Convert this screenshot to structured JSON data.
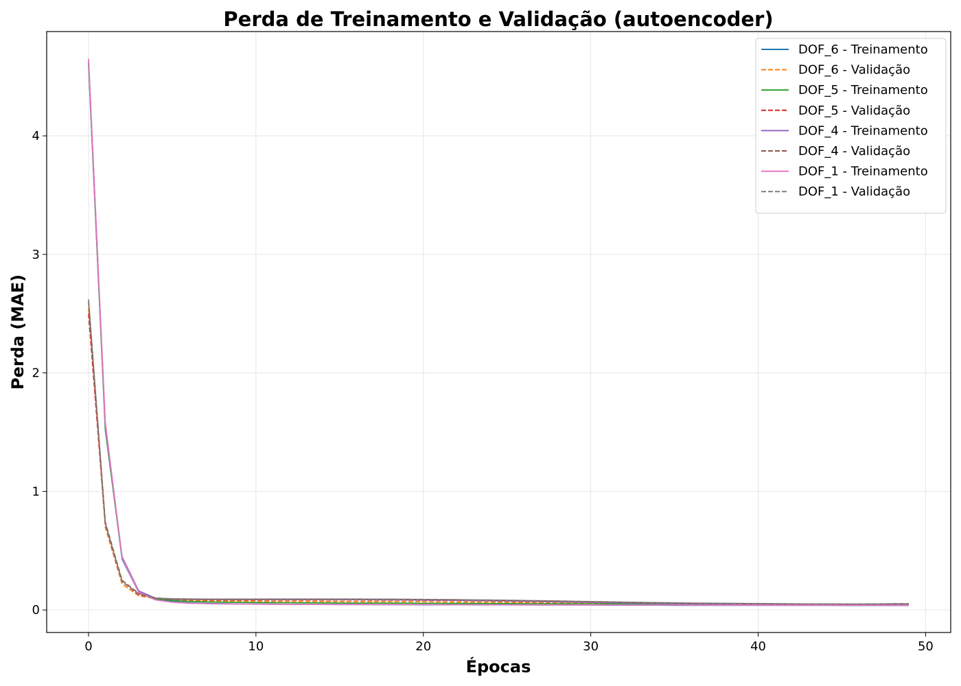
{
  "chart_data": {
    "type": "line",
    "title": "Perda de Treinamento e Validação (autoencoder)",
    "xlabel": "Épocas",
    "ylabel": "Perda (MAE)",
    "xlim": [
      -2.5,
      51.5
    ],
    "ylim": [
      -0.19,
      4.88
    ],
    "xticks": [
      0,
      10,
      20,
      30,
      40,
      50
    ],
    "yticks": [
      0,
      1,
      2,
      3,
      4
    ],
    "grid": true,
    "legend_position": "top-right",
    "x": [
      0,
      1,
      2,
      3,
      4,
      5,
      6,
      7,
      8,
      9,
      10,
      11,
      12,
      13,
      14,
      15,
      16,
      17,
      18,
      19,
      20,
      21,
      22,
      23,
      24,
      25,
      26,
      27,
      28,
      29,
      30,
      31,
      32,
      33,
      34,
      35,
      36,
      37,
      38,
      39,
      40,
      41,
      42,
      43,
      44,
      45,
      46,
      47,
      48,
      49
    ],
    "series": [
      {
        "name": "DOF_6 - Treinamento",
        "color": "#1f77b4",
        "dash": "solid",
        "values": [
          4.62,
          1.55,
          0.43,
          0.15,
          0.09,
          0.07,
          0.06,
          0.056,
          0.053,
          0.051,
          0.05,
          0.049,
          0.048,
          0.047,
          0.047,
          0.046,
          0.046,
          0.045,
          0.045,
          0.045,
          0.044,
          0.044,
          0.044,
          0.043,
          0.043,
          0.043,
          0.043,
          0.042,
          0.042,
          0.042,
          0.042,
          0.041,
          0.041,
          0.041,
          0.041,
          0.04,
          0.04,
          0.04,
          0.04,
          0.04,
          0.039,
          0.039,
          0.039,
          0.039,
          0.039,
          0.038,
          0.038,
          0.038,
          0.038,
          0.038
        ]
      },
      {
        "name": "DOF_6 - Validação",
        "color": "#ff7f0e",
        "dash": "dashed",
        "values": [
          2.55,
          0.7,
          0.22,
          0.12,
          0.095,
          0.085,
          0.08,
          0.078,
          0.076,
          0.075,
          0.074,
          0.073,
          0.073,
          0.072,
          0.072,
          0.071,
          0.071,
          0.07,
          0.07,
          0.07,
          0.069,
          0.068,
          0.067,
          0.066,
          0.065,
          0.064,
          0.063,
          0.061,
          0.06,
          0.058,
          0.057,
          0.055,
          0.054,
          0.053,
          0.052,
          0.051,
          0.05,
          0.05,
          0.049,
          0.049,
          0.048,
          0.048,
          0.047,
          0.047,
          0.047,
          0.046,
          0.046,
          0.046,
          0.046,
          0.045
        ]
      },
      {
        "name": "DOF_5 - Treinamento",
        "color": "#2ca02c",
        "dash": "solid",
        "values": [
          4.6,
          1.52,
          0.44,
          0.155,
          0.095,
          0.08,
          0.072,
          0.068,
          0.066,
          0.064,
          0.063,
          0.062,
          0.061,
          0.06,
          0.06,
          0.059,
          0.058,
          0.058,
          0.057,
          0.057,
          0.056,
          0.056,
          0.055,
          0.055,
          0.054,
          0.054,
          0.053,
          0.053,
          0.052,
          0.052,
          0.051,
          0.051,
          0.05,
          0.05,
          0.049,
          0.049,
          0.048,
          0.048,
          0.047,
          0.047,
          0.046,
          0.046,
          0.045,
          0.045,
          0.045,
          0.044,
          0.044,
          0.044,
          0.043,
          0.043
        ]
      },
      {
        "name": "DOF_5 - Validação",
        "color": "#d62728",
        "dash": "dashed",
        "values": [
          2.5,
          0.72,
          0.24,
          0.13,
          0.1,
          0.09,
          0.087,
          0.086,
          0.085,
          0.085,
          0.085,
          0.085,
          0.085,
          0.085,
          0.085,
          0.085,
          0.085,
          0.084,
          0.084,
          0.083,
          0.082,
          0.081,
          0.08,
          0.078,
          0.077,
          0.075,
          0.073,
          0.071,
          0.069,
          0.067,
          0.065,
          0.063,
          0.061,
          0.059,
          0.057,
          0.055,
          0.054,
          0.053,
          0.052,
          0.051,
          0.05,
          0.05,
          0.049,
          0.049,
          0.048,
          0.048,
          0.048,
          0.047,
          0.047,
          0.047
        ]
      },
      {
        "name": "DOF_4 - Treinamento",
        "color": "#9467bd",
        "dash": "solid",
        "values": [
          4.63,
          1.56,
          0.45,
          0.16,
          0.1,
          0.092,
          0.09,
          0.089,
          0.088,
          0.088,
          0.088,
          0.088,
          0.088,
          0.088,
          0.088,
          0.088,
          0.087,
          0.087,
          0.086,
          0.085,
          0.084,
          0.083,
          0.082,
          0.08,
          0.078,
          0.076,
          0.074,
          0.072,
          0.069,
          0.067,
          0.064,
          0.062,
          0.06,
          0.058,
          0.056,
          0.054,
          0.053,
          0.052,
          0.051,
          0.05,
          0.049,
          0.048,
          0.047,
          0.047,
          0.046,
          0.046,
          0.045,
          0.045,
          0.045,
          0.044
        ]
      },
      {
        "name": "DOF_4 - Validação",
        "color": "#8c564b",
        "dash": "dashed",
        "values": [
          2.6,
          0.74,
          0.25,
          0.14,
          0.1,
          0.093,
          0.091,
          0.09,
          0.09,
          0.09,
          0.09,
          0.091,
          0.091,
          0.091,
          0.091,
          0.091,
          0.091,
          0.09,
          0.09,
          0.089,
          0.088,
          0.087,
          0.086,
          0.084,
          0.083,
          0.081,
          0.079,
          0.077,
          0.075,
          0.073,
          0.07,
          0.068,
          0.065,
          0.063,
          0.061,
          0.059,
          0.057,
          0.056,
          0.055,
          0.054,
          0.053,
          0.052,
          0.051,
          0.05,
          0.05,
          0.05,
          0.049,
          0.05,
          0.052,
          0.052
        ]
      },
      {
        "name": "DOF_1 - Treinamento",
        "color": "#e377c2",
        "dash": "solid",
        "values": [
          4.65,
          1.58,
          0.44,
          0.15,
          0.085,
          0.065,
          0.057,
          0.053,
          0.051,
          0.05,
          0.049,
          0.048,
          0.048,
          0.047,
          0.047,
          0.046,
          0.046,
          0.046,
          0.045,
          0.045,
          0.045,
          0.045,
          0.044,
          0.044,
          0.044,
          0.044,
          0.043,
          0.043,
          0.043,
          0.043,
          0.043,
          0.042,
          0.042,
          0.042,
          0.042,
          0.042,
          0.041,
          0.041,
          0.041,
          0.041,
          0.041,
          0.04,
          0.04,
          0.04,
          0.04,
          0.04,
          0.04,
          0.039,
          0.039,
          0.039
        ]
      },
      {
        "name": "DOF_1 - Validação",
        "color": "#7f7f7f",
        "dash": "dashed",
        "values": [
          2.62,
          0.73,
          0.24,
          0.135,
          0.1,
          0.095,
          0.093,
          0.092,
          0.092,
          0.092,
          0.092,
          0.092,
          0.092,
          0.092,
          0.092,
          0.092,
          0.092,
          0.091,
          0.091,
          0.09,
          0.089,
          0.088,
          0.087,
          0.085,
          0.084,
          0.082,
          0.08,
          0.078,
          0.076,
          0.073,
          0.071,
          0.068,
          0.066,
          0.064,
          0.062,
          0.06,
          0.058,
          0.057,
          0.056,
          0.055,
          0.054,
          0.053,
          0.052,
          0.051,
          0.051,
          0.05,
          0.05,
          0.051,
          0.052,
          0.052
        ]
      }
    ]
  }
}
